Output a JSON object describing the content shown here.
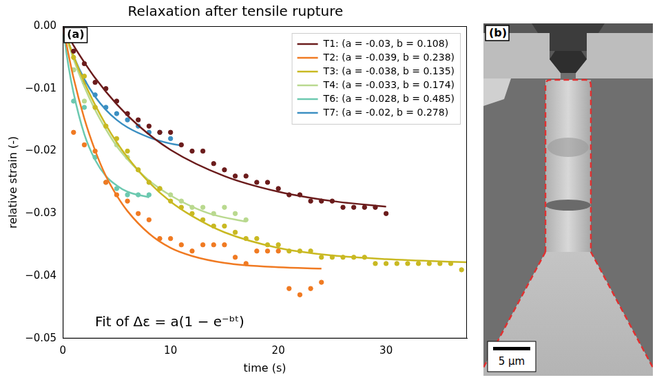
{
  "chart_data": {
    "type": "scatter",
    "title": "Relaxation after tensile rupture",
    "panel_label": "(a)",
    "x_label": "time (s)",
    "y_label": "relative strain (-)",
    "annotation": "Fit of Δε = a(1 − e⁻ᵇᵗ)",
    "xlim": [
      0,
      37.5
    ],
    "ylim": [
      -0.05,
      0
    ],
    "xticks": [
      0,
      10,
      20,
      30
    ],
    "yticks": [
      {
        "value": -0.05,
        "label": "−0.05"
      },
      {
        "value": -0.04,
        "label": "−0.04"
      },
      {
        "value": -0.03,
        "label": "−0.03"
      },
      {
        "value": -0.02,
        "label": "−0.02"
      },
      {
        "value": -0.01,
        "label": "−0.01"
      },
      {
        "value": 0,
        "label": "0.00"
      }
    ],
    "grid": false,
    "legend": "upper right",
    "series": [
      {
        "name": "T1: (a = -0.03, b = 0.108)",
        "color": "#6b1c1c",
        "x": [
          1,
          2,
          3,
          4,
          5,
          6,
          7,
          8,
          9,
          10,
          11,
          12,
          13,
          14,
          15,
          16,
          17,
          18,
          19,
          20,
          21,
          22,
          23,
          24,
          25,
          26,
          27,
          28,
          29,
          30
        ],
        "values": [
          -0.004,
          -0.006,
          -0.009,
          -0.01,
          -0.012,
          -0.014,
          -0.015,
          -0.016,
          -0.017,
          -0.017,
          -0.019,
          -0.02,
          -0.02,
          -0.022,
          -0.023,
          -0.024,
          -0.024,
          -0.025,
          -0.025,
          -0.026,
          -0.027,
          -0.027,
          -0.028,
          -0.028,
          -0.028,
          -0.029,
          -0.029,
          -0.029,
          -0.029,
          -0.03
        ],
        "fit_x": [
          0,
          1,
          2,
          3,
          5,
          7,
          10,
          15,
          20,
          25,
          30
        ],
        "fit_values": [
          0,
          -0.0031,
          -0.0058,
          -0.0083,
          -0.0125,
          -0.0159,
          -0.0198,
          -0.024,
          -0.0265,
          -0.028,
          -0.0289
        ]
      },
      {
        "name": "T2: (a = -0.039, b = 0.238)",
        "color": "#f07a22",
        "x": [
          1,
          2,
          3,
          4,
          5,
          6,
          7,
          8,
          9,
          10,
          11,
          12,
          13,
          14,
          15,
          16,
          17,
          18,
          19,
          20,
          21,
          22,
          23,
          24
        ],
        "values": [
          -0.017,
          -0.019,
          -0.02,
          -0.025,
          -0.027,
          -0.028,
          -0.03,
          -0.031,
          -0.034,
          -0.034,
          -0.035,
          -0.036,
          -0.035,
          -0.035,
          -0.035,
          -0.037,
          -0.038,
          -0.036,
          -0.036,
          -0.036,
          -0.042,
          -0.043,
          -0.042,
          -0.041
        ],
        "fit_x": [
          0,
          1,
          2,
          3,
          4,
          5,
          6,
          8,
          10,
          12,
          15,
          20,
          24
        ],
        "fit_values": [
          0,
          -0.0083,
          -0.0148,
          -0.0199,
          -0.024,
          -0.0271,
          -0.0296,
          -0.0332,
          -0.0355,
          -0.0368,
          -0.0379,
          -0.0386,
          -0.0388
        ]
      },
      {
        "name": "T3: (a = -0.038, b = 0.135)",
        "color": "#c9b922",
        "x": [
          1,
          2,
          3,
          4,
          5,
          6,
          7,
          8,
          9,
          10,
          11,
          12,
          13,
          14,
          15,
          16,
          17,
          18,
          19,
          20,
          21,
          22,
          23,
          24,
          25,
          26,
          27,
          28,
          29,
          30,
          31,
          32,
          33,
          34,
          35,
          36,
          37
        ],
        "values": [
          -0.005,
          -0.008,
          -0.013,
          -0.016,
          -0.018,
          -0.02,
          -0.023,
          -0.025,
          -0.026,
          -0.028,
          -0.029,
          -0.03,
          -0.031,
          -0.032,
          -0.032,
          -0.033,
          -0.034,
          -0.034,
          -0.035,
          -0.035,
          -0.036,
          -0.036,
          -0.036,
          -0.037,
          -0.037,
          -0.037,
          -0.037,
          -0.037,
          -0.038,
          -0.038,
          -0.038,
          -0.038,
          -0.038,
          -0.038,
          -0.038,
          -0.038,
          -0.039
        ],
        "fit_x": [
          0,
          1,
          2,
          3,
          4,
          5,
          6,
          8,
          10,
          12,
          15,
          20,
          25,
          30,
          37.5
        ],
        "fit_values": [
          0,
          -0.0048,
          -0.009,
          -0.0126,
          -0.0158,
          -0.0186,
          -0.021,
          -0.025,
          -0.0281,
          -0.0304,
          -0.033,
          -0.0355,
          -0.0367,
          -0.0373,
          -0.0378
        ]
      },
      {
        "name": "T4: (a = -0.033, b = 0.174)",
        "color": "#b9d98f",
        "x": [
          1,
          2,
          3,
          4,
          5,
          6,
          7,
          8,
          9,
          10,
          11,
          12,
          13,
          14,
          15,
          16,
          17
        ],
        "values": [
          -0.007,
          -0.012,
          -0.013,
          -0.016,
          -0.019,
          -0.021,
          -0.023,
          -0.025,
          -0.026,
          -0.027,
          -0.028,
          -0.029,
          -0.029,
          -0.03,
          -0.029,
          -0.03,
          -0.031
        ],
        "fit_x": [
          0,
          1,
          2,
          3,
          4,
          5,
          6,
          8,
          10,
          12,
          14,
          17
        ],
        "fit_values": [
          0,
          -0.0053,
          -0.0097,
          -0.0134,
          -0.0165,
          -0.0192,
          -0.0213,
          -0.0247,
          -0.0271,
          -0.0289,
          -0.0302,
          -0.0313
        ]
      },
      {
        "name": "T6: (a = -0.028, b = 0.485)",
        "color": "#6cc9b0",
        "x": [
          1,
          2,
          3,
          4,
          5,
          6,
          7,
          8
        ],
        "values": [
          -0.012,
          -0.013,
          -0.021,
          -0.025,
          -0.026,
          -0.027,
          -0.027,
          -0.027
        ],
        "fit_x": [
          0,
          0.5,
          1,
          2,
          3,
          4,
          5,
          6,
          8
        ],
        "fit_values": [
          0,
          -0.0061,
          -0.0107,
          -0.0173,
          -0.0214,
          -0.024,
          -0.0255,
          -0.0265,
          -0.0274
        ]
      },
      {
        "name": "T7: (a = -0.02, b = 0.278)",
        "color": "#3b8fc2",
        "x": [
          1,
          2,
          3,
          4,
          5,
          6,
          7,
          8,
          9,
          10
        ],
        "values": [
          -0.007,
          -0.009,
          -0.011,
          -0.013,
          -0.014,
          -0.015,
          -0.016,
          -0.017,
          -0.017,
          -0.018
        ],
        "fit_x": [
          0,
          1,
          2,
          3,
          4,
          5,
          6,
          8,
          10,
          11
        ],
        "fit_values": [
          0,
          -0.0048,
          -0.0085,
          -0.0113,
          -0.0134,
          -0.015,
          -0.0162,
          -0.0178,
          -0.0188,
          -0.0191
        ]
      }
    ]
  },
  "image_panel": {
    "panel_label": "(b)",
    "scale_bar": "5 µm"
  }
}
